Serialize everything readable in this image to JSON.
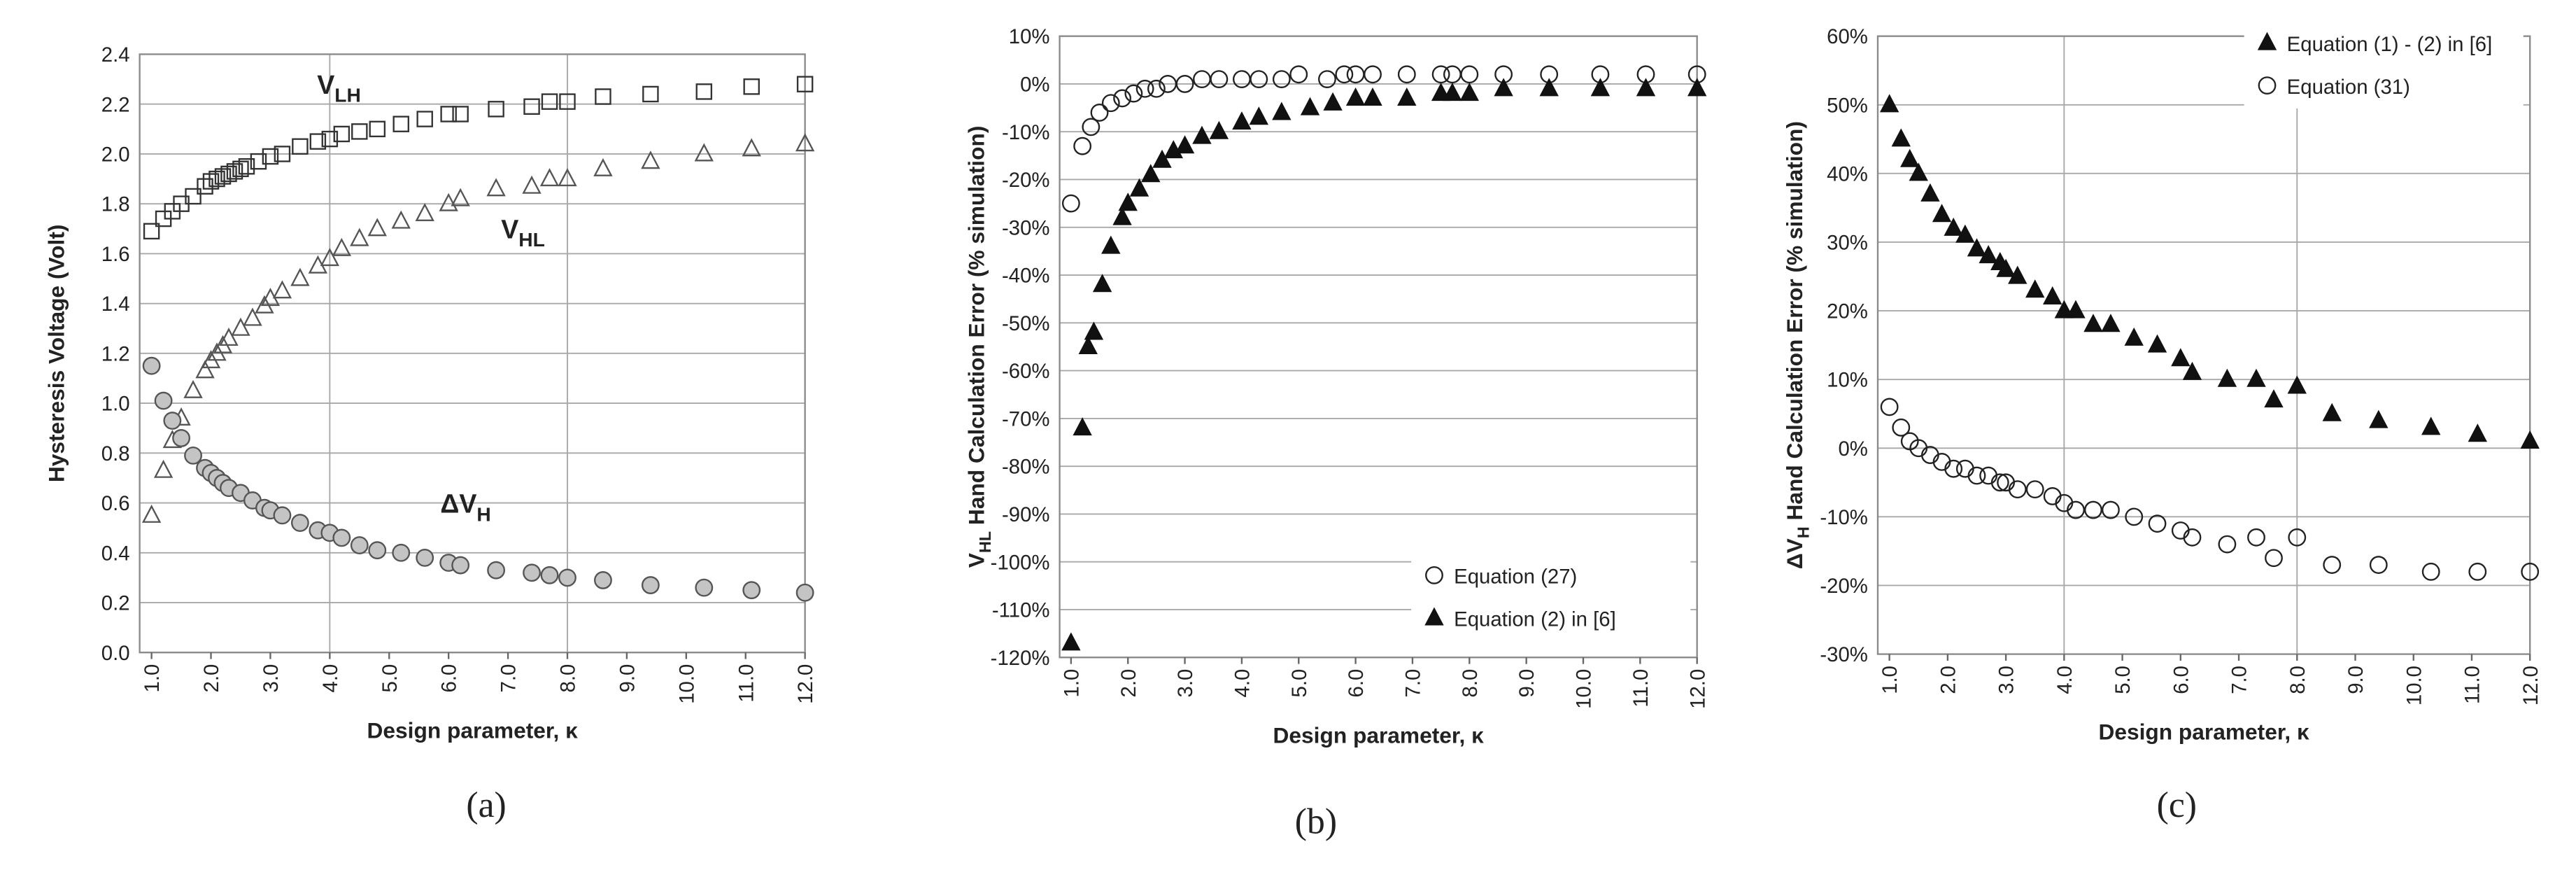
{
  "chart_data": [
    {
      "type": "scatter",
      "panel_label": "(a)",
      "ylabel": {
        "text": "Hysteresis Voltage (Volt)"
      },
      "xlabel": "Design parameter, κ",
      "xlim": [
        0.8,
        12
      ],
      "ylim": [
        0,
        2.4
      ],
      "xticks": [
        {
          "value": 1,
          "label": "1.0"
        },
        {
          "value": 2,
          "label": "2.0"
        },
        {
          "value": 3,
          "label": "3.0"
        },
        {
          "value": 4,
          "label": "4.0"
        },
        {
          "value": 5,
          "label": "5.0"
        },
        {
          "value": 6,
          "label": "6.0"
        },
        {
          "value": 7,
          "label": "7.0"
        },
        {
          "value": 8,
          "label": "8.0"
        },
        {
          "value": 9,
          "label": "9.0"
        },
        {
          "value": 10,
          "label": "10.0"
        },
        {
          "value": 11,
          "label": "11.0"
        },
        {
          "value": 12,
          "label": "12.0"
        }
      ],
      "yticks": [
        {
          "value": 0,
          "label": "0.0"
        },
        0.2,
        0.4,
        0.6,
        0.8,
        {
          "value": 1,
          "label": "1.0"
        },
        1.2,
        1.4,
        1.6,
        1.8,
        {
          "value": 2,
          "label": "2.0"
        },
        2.2,
        2.4
      ],
      "grid": true,
      "x_gridlines": [
        4,
        8
      ],
      "annotations": [
        {
          "text": "V",
          "sub": "LH"
        },
        {
          "text": "V",
          "sub": "HL"
        },
        {
          "text": "ΔV",
          "sub": "H"
        }
      ],
      "series": [
        {
          "marker": "square",
          "color": "#333333",
          "filled": false,
          "x": [
            1.0,
            1.2,
            1.35,
            1.5,
            1.7,
            1.9,
            2.0,
            2.1,
            2.2,
            2.3,
            2.4,
            2.5,
            2.6,
            2.8,
            3.0,
            3.2,
            3.5,
            3.8,
            4.0,
            4.2,
            4.5,
            4.8,
            5.2,
            5.6,
            6.0,
            6.2,
            6.8,
            7.4,
            7.7,
            8.0,
            8.6,
            9.4,
            10.3,
            11.1,
            12.0
          ],
          "values": [
            1.69,
            1.74,
            1.77,
            1.8,
            1.83,
            1.87,
            1.89,
            1.9,
            1.91,
            1.92,
            1.93,
            1.94,
            1.95,
            1.97,
            1.99,
            2.0,
            2.03,
            2.05,
            2.06,
            2.08,
            2.09,
            2.1,
            2.12,
            2.14,
            2.16,
            2.16,
            2.18,
            2.19,
            2.21,
            2.21,
            2.23,
            2.24,
            2.25,
            2.27,
            2.28
          ]
        },
        {
          "marker": "triangle",
          "color": "#555555",
          "filled": false,
          "x": [
            1.0,
            1.2,
            1.35,
            1.5,
            1.7,
            1.9,
            2.0,
            2.1,
            2.2,
            2.3,
            2.5,
            2.7,
            2.9,
            3.0,
            3.2,
            3.5,
            3.8,
            4.0,
            4.2,
            4.5,
            4.8,
            5.2,
            5.6,
            6.0,
            6.2,
            6.8,
            7.4,
            7.7,
            8.0,
            8.6,
            9.4,
            10.3,
            11.1,
            12.0
          ],
          "values": [
            0.55,
            0.73,
            0.85,
            0.94,
            1.05,
            1.13,
            1.17,
            1.2,
            1.23,
            1.26,
            1.3,
            1.34,
            1.39,
            1.42,
            1.45,
            1.5,
            1.55,
            1.58,
            1.62,
            1.66,
            1.7,
            1.73,
            1.76,
            1.8,
            1.82,
            1.86,
            1.87,
            1.9,
            1.9,
            1.94,
            1.97,
            2.0,
            2.02,
            2.04
          ]
        },
        {
          "marker": "circle",
          "color": "#c4c4c4",
          "filled": true,
          "x": [
            1.0,
            1.2,
            1.35,
            1.5,
            1.7,
            1.9,
            2.0,
            2.1,
            2.2,
            2.3,
            2.5,
            2.7,
            2.9,
            3.0,
            3.2,
            3.5,
            3.8,
            4.0,
            4.2,
            4.5,
            4.8,
            5.2,
            5.6,
            6.0,
            6.2,
            6.8,
            7.4,
            7.7,
            8.0,
            8.6,
            9.4,
            10.3,
            11.1,
            12.0
          ],
          "values": [
            1.15,
            1.01,
            0.93,
            0.86,
            0.79,
            0.74,
            0.72,
            0.7,
            0.68,
            0.66,
            0.64,
            0.61,
            0.58,
            0.57,
            0.55,
            0.52,
            0.49,
            0.48,
            0.46,
            0.43,
            0.41,
            0.4,
            0.38,
            0.36,
            0.35,
            0.33,
            0.32,
            0.31,
            0.3,
            0.29,
            0.27,
            0.26,
            0.25,
            0.24
          ]
        }
      ]
    },
    {
      "type": "scatter",
      "panel_label": "(b)",
      "ylabel": {
        "text": "V",
        "sub": "HL",
        "rest": " Hand Calculation Error (% simulation)"
      },
      "xlabel": "Design parameter, κ",
      "xlim": [
        0.8,
        12
      ],
      "ylim": [
        -120,
        10
      ],
      "xticks": [
        {
          "value": 1,
          "label": "1.0"
        },
        {
          "value": 2,
          "label": "2.0"
        },
        {
          "value": 3,
          "label": "3.0"
        },
        {
          "value": 4,
          "label": "4.0"
        },
        {
          "value": 5,
          "label": "5.0"
        },
        {
          "value": 6,
          "label": "6.0"
        },
        {
          "value": 7,
          "label": "7.0"
        },
        {
          "value": 8,
          "label": "8.0"
        },
        {
          "value": 9,
          "label": "9.0"
        },
        {
          "value": 10,
          "label": "10.0"
        },
        {
          "value": 11,
          "label": "11.0"
        },
        {
          "value": 12,
          "label": "12.0"
        }
      ],
      "yticks": [
        {
          "value": 10,
          "label": "10%"
        },
        {
          "value": 0,
          "label": "0%"
        },
        {
          "value": -10,
          "label": "-10%"
        },
        {
          "value": -20,
          "label": "-20%"
        },
        {
          "value": -30,
          "label": "-30%"
        },
        {
          "value": -40,
          "label": "-40%"
        },
        {
          "value": -50,
          "label": "-50%"
        },
        {
          "value": -60,
          "label": "-60%"
        },
        {
          "value": -70,
          "label": "-70%"
        },
        {
          "value": -80,
          "label": "-80%"
        },
        {
          "value": -90,
          "label": "-90%"
        },
        {
          "value": -100,
          "label": "-100%"
        },
        {
          "value": -110,
          "label": "-110%"
        },
        {
          "value": -120,
          "label": "-120%"
        }
      ],
      "grid": true,
      "legend": "lower right",
      "series": [
        {
          "name": "Equation (27)",
          "marker": "circle",
          "color": "#222222",
          "filled": false,
          "x": [
            1.0,
            1.2,
            1.35,
            1.5,
            1.7,
            1.9,
            2.1,
            2.3,
            2.5,
            2.7,
            3.0,
            3.3,
            3.6,
            4.0,
            4.3,
            4.7,
            5.0,
            5.5,
            5.8,
            6.0,
            6.3,
            6.9,
            7.5,
            7.7,
            8.0,
            8.6,
            9.4,
            10.3,
            11.1,
            12.0
          ],
          "values": [
            -25,
            -13,
            -9,
            -6,
            -4,
            -3,
            -2,
            -1,
            -1,
            0,
            0,
            1,
            1,
            1,
            1,
            1,
            2,
            1,
            2,
            2,
            2,
            2,
            2,
            2,
            2,
            2,
            2,
            2,
            2,
            2
          ]
        },
        {
          "name": "Equation (2) in [6]",
          "marker": "triangle",
          "color": "#111111",
          "filled": true,
          "x": [
            1.0,
            1.2,
            1.3,
            1.4,
            1.55,
            1.7,
            1.9,
            2.0,
            2.2,
            2.4,
            2.6,
            2.8,
            3.0,
            3.3,
            3.6,
            4.0,
            4.3,
            4.7,
            5.2,
            5.6,
            6.0,
            6.3,
            6.9,
            7.5,
            7.7,
            8.0,
            8.6,
            9.4,
            10.3,
            11.1,
            12.0
          ],
          "values": [
            -117,
            -72,
            -55,
            -52,
            -42,
            -34,
            -28,
            -25,
            -22,
            -19,
            -16,
            -14,
            -13,
            -11,
            -10,
            -8,
            -7,
            -6,
            -5,
            -4,
            -3,
            -3,
            -3,
            -2,
            -2,
            -2,
            -1,
            -1,
            -1,
            -1,
            -1
          ]
        }
      ]
    },
    {
      "type": "scatter",
      "panel_label": "(c)",
      "ylabel": {
        "text": "ΔV",
        "sub": "H",
        "rest": " Hand Calculation Error (% simulation)"
      },
      "xlabel": "Design parameter, κ",
      "xlim": [
        0.8,
        12
      ],
      "ylim": [
        -30,
        60
      ],
      "xticks": [
        {
          "value": 1,
          "label": "1.0"
        },
        {
          "value": 2,
          "label": "2.0"
        },
        {
          "value": 3,
          "label": "3.0"
        },
        {
          "value": 4,
          "label": "4.0"
        },
        {
          "value": 5,
          "label": "5.0"
        },
        {
          "value": 6,
          "label": "6.0"
        },
        {
          "value": 7,
          "label": "7.0"
        },
        {
          "value": 8,
          "label": "8.0"
        },
        {
          "value": 9,
          "label": "9.0"
        },
        {
          "value": 10,
          "label": "10.0"
        },
        {
          "value": 11,
          "label": "11.0"
        },
        {
          "value": 12,
          "label": "12.0"
        }
      ],
      "yticks": [
        {
          "value": 60,
          "label": "60%"
        },
        {
          "value": 50,
          "label": "50%"
        },
        {
          "value": 40,
          "label": "40%"
        },
        {
          "value": 30,
          "label": "30%"
        },
        {
          "value": 20,
          "label": "20%"
        },
        {
          "value": 10,
          "label": "10%"
        },
        {
          "value": 0,
          "label": "0%"
        },
        {
          "value": -10,
          "label": "-10%"
        },
        {
          "value": -20,
          "label": "-20%"
        },
        {
          "value": -30,
          "label": "-30%"
        }
      ],
      "grid": true,
      "x_gridlines": [
        4,
        8
      ],
      "legend": "upper right",
      "series": [
        {
          "name": "Equation (1) - (2) in [6]",
          "marker": "triangle",
          "color": "#111111",
          "filled": true,
          "x": [
            1.0,
            1.2,
            1.35,
            1.5,
            1.7,
            1.9,
            2.1,
            2.3,
            2.5,
            2.7,
            2.9,
            3.0,
            3.2,
            3.5,
            3.8,
            4.0,
            4.2,
            4.5,
            4.8,
            5.2,
            5.6,
            6.0,
            6.2,
            6.8,
            7.3,
            7.6,
            8.0,
            8.6,
            9.4,
            10.3,
            11.1,
            12.0
          ],
          "values": [
            50,
            45,
            42,
            40,
            37,
            34,
            32,
            31,
            29,
            28,
            27,
            26,
            25,
            23,
            22,
            20,
            20,
            18,
            18,
            16,
            15,
            13,
            11,
            10,
            10,
            7,
            9,
            5,
            4,
            3,
            2,
            1
          ]
        },
        {
          "name": "Equation (31)",
          "marker": "circle",
          "color": "#222222",
          "filled": false,
          "x": [
            1.0,
            1.2,
            1.35,
            1.5,
            1.7,
            1.9,
            2.1,
            2.3,
            2.5,
            2.7,
            2.9,
            3.0,
            3.2,
            3.5,
            3.8,
            4.0,
            4.2,
            4.5,
            4.8,
            5.2,
            5.6,
            6.0,
            6.2,
            6.8,
            7.3,
            7.6,
            8.0,
            8.6,
            9.4,
            10.3,
            11.1,
            12.0
          ],
          "values": [
            6,
            3,
            1,
            0,
            -1,
            -2,
            -3,
            -3,
            -4,
            -4,
            -5,
            -5,
            -6,
            -6,
            -7,
            -8,
            -9,
            -9,
            -9,
            -10,
            -11,
            -12,
            -13,
            -14,
            -13,
            -16,
            -13,
            -17,
            -17,
            -18,
            -18,
            -18
          ]
        }
      ]
    }
  ]
}
